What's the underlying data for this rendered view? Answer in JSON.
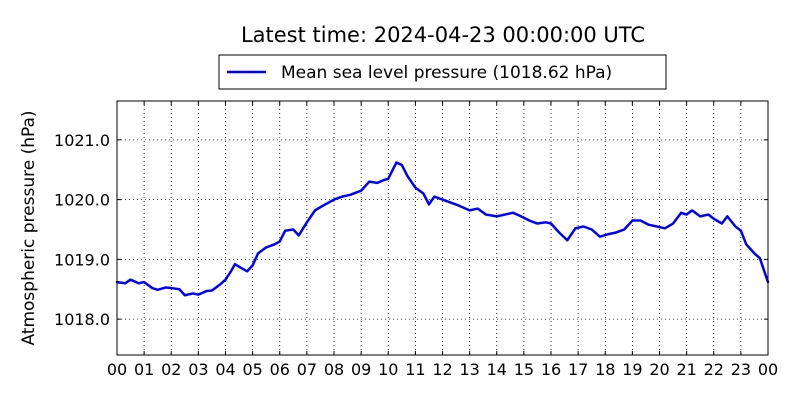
{
  "chart_data": {
    "type": "line",
    "title": "Latest time: 2024-04-23 00:00:00 UTC",
    "xlabel": "",
    "ylabel": "Atmospheric pressure (hPa)",
    "xlim": [
      0,
      24
    ],
    "ylim": [
      1017.4,
      1021.65
    ],
    "x_ticks": [
      "00",
      "01",
      "02",
      "03",
      "04",
      "05",
      "06",
      "07",
      "08",
      "09",
      "10",
      "11",
      "12",
      "13",
      "14",
      "15",
      "16",
      "17",
      "18",
      "19",
      "20",
      "21",
      "22",
      "23",
      "00"
    ],
    "y_ticks": [
      {
        "value": 1018.0,
        "label": "1018.0"
      },
      {
        "value": 1019.0,
        "label": "1019.0"
      },
      {
        "value": 1020.0,
        "label": "1020.0"
      },
      {
        "value": 1021.0,
        "label": "1021.0"
      }
    ],
    "grid": true,
    "legend_position": "top-center",
    "series": [
      {
        "name": "Mean sea level pressure (1018.62 hPa)",
        "color": "#0000ff",
        "points": [
          [
            0.0,
            1018.62
          ],
          [
            0.3,
            1018.6
          ],
          [
            0.5,
            1018.66
          ],
          [
            0.8,
            1018.6
          ],
          [
            1.0,
            1018.62
          ],
          [
            1.3,
            1018.52
          ],
          [
            1.5,
            1018.49
          ],
          [
            1.8,
            1018.53
          ],
          [
            2.0,
            1018.52
          ],
          [
            2.3,
            1018.5
          ],
          [
            2.5,
            1018.4
          ],
          [
            2.8,
            1018.43
          ],
          [
            3.0,
            1018.41
          ],
          [
            3.3,
            1018.47
          ],
          [
            3.5,
            1018.48
          ],
          [
            3.8,
            1018.58
          ],
          [
            4.0,
            1018.66
          ],
          [
            4.2,
            1018.8
          ],
          [
            4.35,
            1018.92
          ],
          [
            4.6,
            1018.85
          ],
          [
            4.8,
            1018.8
          ],
          [
            5.0,
            1018.9
          ],
          [
            5.2,
            1019.1
          ],
          [
            5.5,
            1019.2
          ],
          [
            5.8,
            1019.25
          ],
          [
            6.0,
            1019.3
          ],
          [
            6.2,
            1019.48
          ],
          [
            6.5,
            1019.5
          ],
          [
            6.7,
            1019.4
          ],
          [
            7.0,
            1019.62
          ],
          [
            7.3,
            1019.82
          ],
          [
            7.6,
            1019.9
          ],
          [
            8.0,
            1020.0
          ],
          [
            8.3,
            1020.05
          ],
          [
            8.6,
            1020.08
          ],
          [
            9.0,
            1020.15
          ],
          [
            9.3,
            1020.3
          ],
          [
            9.6,
            1020.28
          ],
          [
            9.8,
            1020.32
          ],
          [
            10.0,
            1020.35
          ],
          [
            10.3,
            1020.62
          ],
          [
            10.5,
            1020.58
          ],
          [
            10.7,
            1020.4
          ],
          [
            11.0,
            1020.2
          ],
          [
            11.3,
            1020.1
          ],
          [
            11.5,
            1019.92
          ],
          [
            11.7,
            1020.05
          ],
          [
            12.0,
            1020.0
          ],
          [
            12.3,
            1019.95
          ],
          [
            12.6,
            1019.9
          ],
          [
            13.0,
            1019.82
          ],
          [
            13.3,
            1019.85
          ],
          [
            13.6,
            1019.75
          ],
          [
            14.0,
            1019.72
          ],
          [
            14.3,
            1019.75
          ],
          [
            14.6,
            1019.78
          ],
          [
            14.9,
            1019.72
          ],
          [
            15.2,
            1019.65
          ],
          [
            15.5,
            1019.6
          ],
          [
            15.8,
            1019.62
          ],
          [
            16.0,
            1019.6
          ],
          [
            16.3,
            1019.45
          ],
          [
            16.6,
            1019.32
          ],
          [
            16.9,
            1019.52
          ],
          [
            17.2,
            1019.55
          ],
          [
            17.5,
            1019.5
          ],
          [
            17.8,
            1019.38
          ],
          [
            18.1,
            1019.42
          ],
          [
            18.4,
            1019.45
          ],
          [
            18.7,
            1019.5
          ],
          [
            19.0,
            1019.65
          ],
          [
            19.3,
            1019.65
          ],
          [
            19.6,
            1019.58
          ],
          [
            19.9,
            1019.55
          ],
          [
            20.2,
            1019.52
          ],
          [
            20.5,
            1019.6
          ],
          [
            20.8,
            1019.78
          ],
          [
            21.0,
            1019.75
          ],
          [
            21.2,
            1019.82
          ],
          [
            21.5,
            1019.72
          ],
          [
            21.8,
            1019.75
          ],
          [
            22.0,
            1019.68
          ],
          [
            22.3,
            1019.6
          ],
          [
            22.5,
            1019.72
          ],
          [
            22.8,
            1019.55
          ],
          [
            23.0,
            1019.48
          ],
          [
            23.2,
            1019.25
          ],
          [
            23.5,
            1019.1
          ],
          [
            23.7,
            1019.02
          ],
          [
            24.0,
            1018.62
          ]
        ]
      }
    ]
  }
}
